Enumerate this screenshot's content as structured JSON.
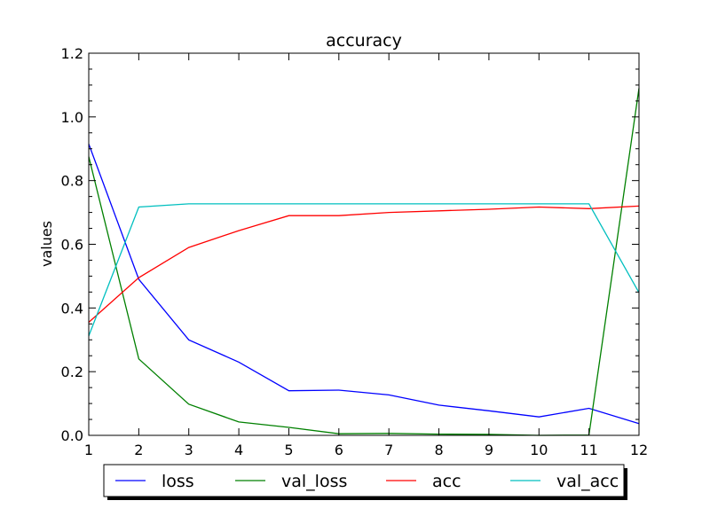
{
  "chart_data": {
    "type": "line",
    "title": "accuracy",
    "xlabel": "",
    "ylabel": "values",
    "xlim": [
      1,
      12
    ],
    "ylim": [
      0.0,
      1.2
    ],
    "x": [
      1,
      2,
      3,
      4,
      5,
      6,
      7,
      8,
      9,
      10,
      11,
      12
    ],
    "x_ticks": [
      "1",
      "2",
      "3",
      "4",
      "5",
      "6",
      "7",
      "8",
      "9",
      "10",
      "11",
      "12"
    ],
    "y_ticks": [
      "0.0",
      "0.2",
      "0.4",
      "0.6",
      "0.8",
      "1.0",
      "1.2"
    ],
    "grid": false,
    "legend_position": "bottom",
    "series": [
      {
        "name": "loss",
        "color": "#0000ff",
        "values": [
          0.915,
          0.49,
          0.3,
          0.23,
          0.14,
          0.142,
          0.127,
          0.095,
          0.077,
          0.058,
          0.085,
          0.037
        ]
      },
      {
        "name": "val_loss",
        "color": "#008000",
        "values": [
          0.875,
          0.24,
          0.098,
          0.042,
          0.025,
          0.005,
          0.006,
          0.004,
          0.003,
          0.0,
          0.001,
          1.09
        ]
      },
      {
        "name": "acc",
        "color": "#ff0000",
        "values": [
          0.355,
          0.495,
          0.59,
          0.643,
          0.69,
          0.69,
          0.7,
          0.705,
          0.71,
          0.717,
          0.712,
          0.72
        ]
      },
      {
        "name": "val_acc",
        "color": "#00bfbf",
        "values": [
          0.312,
          0.717,
          0.727,
          0.727,
          0.727,
          0.727,
          0.727,
          0.727,
          0.727,
          0.727,
          0.727,
          0.448
        ]
      }
    ]
  }
}
